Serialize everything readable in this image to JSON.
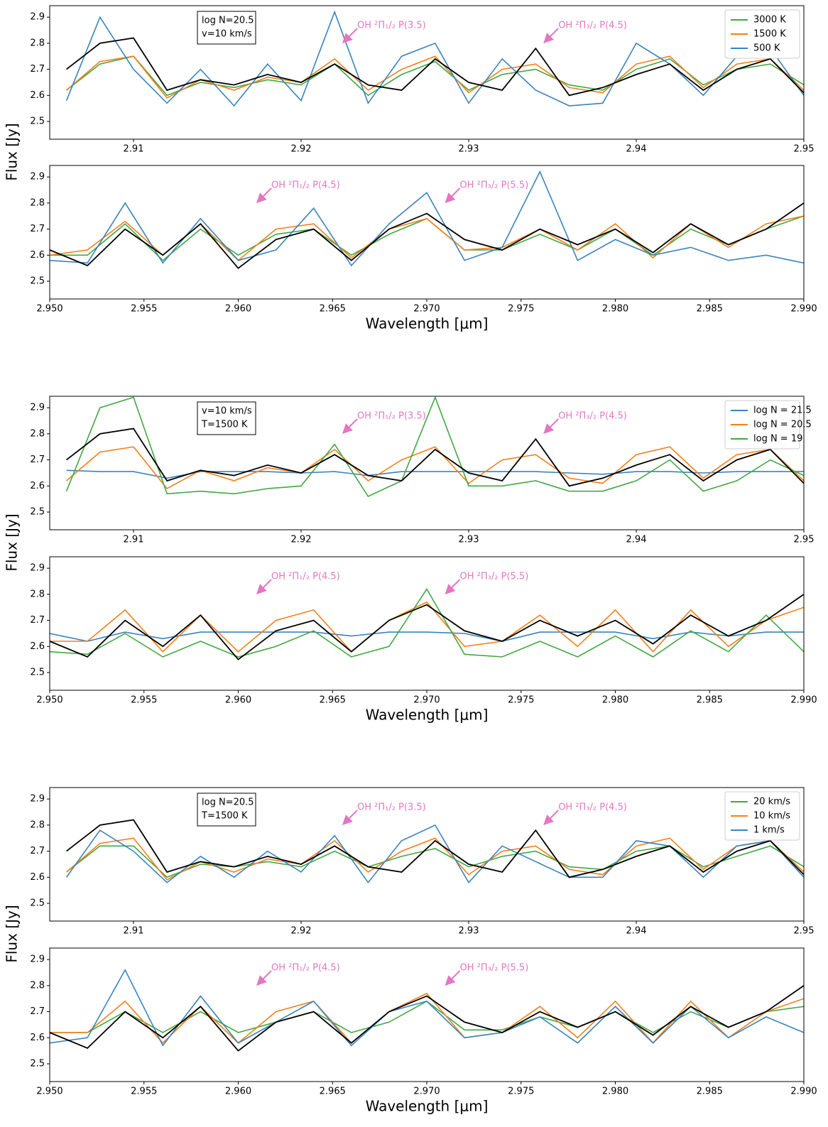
{
  "chart_data": [
    {
      "type": "line",
      "ylabel": "Flux [Jy]",
      "x": [
        2.906,
        2.908,
        2.91,
        2.912,
        2.914,
        2.916,
        2.918,
        2.92,
        2.922,
        2.924,
        2.926,
        2.928,
        2.93,
        2.932,
        2.934,
        2.936,
        2.938,
        2.94,
        2.942,
        2.944,
        2.946,
        2.948,
        2.95
      ],
      "xlim": [
        2.905,
        2.95
      ],
      "ylim": [
        2.432,
        2.944
      ],
      "xticks": [
        2.91,
        2.92,
        2.93,
        2.94,
        2.95
      ],
      "yticks": [
        2.5,
        2.6,
        2.7,
        2.8,
        2.9
      ],
      "legend": "upper right",
      "textbox": [
        "log N=20.5",
        "v=10 km/s"
      ],
      "annotations": [
        {
          "text": "OH ²Π₁/₂ P(3.5)",
          "x": 2.9225
        },
        {
          "text": "OH ²Π₃/₂ P(4.5)",
          "x": 2.9345
        }
      ],
      "series": [
        {
          "name": "3000 K",
          "color": "#43a843",
          "values": [
            2.62,
            2.72,
            2.75,
            2.6,
            2.65,
            2.63,
            2.66,
            2.64,
            2.72,
            2.6,
            2.68,
            2.73,
            2.62,
            2.68,
            2.7,
            2.64,
            2.62,
            2.7,
            2.74,
            2.64,
            2.7,
            2.72,
            2.64
          ]
        },
        {
          "name": "1500 K",
          "color": "#f47f19",
          "values": [
            2.62,
            2.73,
            2.75,
            2.59,
            2.66,
            2.62,
            2.67,
            2.65,
            2.74,
            2.62,
            2.7,
            2.75,
            2.61,
            2.7,
            2.72,
            2.63,
            2.61,
            2.72,
            2.75,
            2.63,
            2.72,
            2.74,
            2.62
          ]
        },
        {
          "name": "500 K",
          "color": "#3a84bd",
          "values": [
            2.58,
            2.9,
            2.7,
            2.57,
            2.7,
            2.56,
            2.72,
            2.58,
            2.92,
            2.57,
            2.75,
            2.8,
            2.57,
            2.74,
            2.62,
            2.56,
            2.57,
            2.8,
            2.72,
            2.6,
            2.75,
            2.78,
            2.6
          ]
        },
        {
          "color": "#000000",
          "values": [
            2.7,
            2.8,
            2.82,
            2.62,
            2.66,
            2.64,
            2.68,
            2.65,
            2.72,
            2.64,
            2.62,
            2.74,
            2.65,
            2.62,
            2.78,
            2.6,
            2.63,
            2.68,
            2.72,
            2.62,
            2.7,
            2.74,
            2.61
          ]
        }
      ]
    },
    {
      "type": "line",
      "xlabel": "Wavelength [μm]",
      "x": [
        2.95,
        2.952,
        2.954,
        2.956,
        2.958,
        2.96,
        2.962,
        2.964,
        2.966,
        2.968,
        2.97,
        2.972,
        2.974,
        2.976,
        2.978,
        2.98,
        2.982,
        2.984,
        2.986,
        2.988,
        2.99
      ],
      "xlim": [
        2.95,
        2.99
      ],
      "ylim": [
        2.432,
        2.944
      ],
      "xticks": [
        {
          "value": 2.95,
          "label": "2.950"
        },
        2.955,
        {
          "value": 2.96,
          "label": "2.960"
        },
        2.965,
        {
          "value": 2.97,
          "label": "2.970"
        },
        2.975,
        {
          "value": 2.98,
          "label": "2.980"
        },
        2.985,
        {
          "value": 2.99,
          "label": "2.990"
        }
      ],
      "yticks": [
        2.5,
        2.6,
        2.7,
        2.8,
        2.9
      ],
      "annotations": [
        {
          "text": "OH ²Π₁/₂ P(4.5)",
          "x": 2.961
        },
        {
          "text": "OH ²Π₃/₂ P(5.5)",
          "x": 2.971
        }
      ],
      "series": [
        {
          "color": "#43a843",
          "values": [
            2.6,
            2.6,
            2.72,
            2.58,
            2.7,
            2.6,
            2.68,
            2.7,
            2.6,
            2.68,
            2.74,
            2.62,
            2.62,
            2.68,
            2.62,
            2.7,
            2.6,
            2.7,
            2.64,
            2.7,
            2.75
          ]
        },
        {
          "color": "#f47f19",
          "values": [
            2.6,
            2.62,
            2.73,
            2.6,
            2.72,
            2.58,
            2.7,
            2.72,
            2.59,
            2.7,
            2.74,
            2.62,
            2.63,
            2.7,
            2.62,
            2.72,
            2.59,
            2.72,
            2.63,
            2.72,
            2.75
          ]
        },
        {
          "color": "#3a84bd",
          "values": [
            2.58,
            2.57,
            2.8,
            2.57,
            2.74,
            2.58,
            2.62,
            2.78,
            2.56,
            2.72,
            2.84,
            2.58,
            2.63,
            2.92,
            2.58,
            2.66,
            2.6,
            2.63,
            2.58,
            2.6,
            2.57
          ]
        },
        {
          "color": "#000000",
          "values": [
            2.62,
            2.56,
            2.7,
            2.6,
            2.72,
            2.55,
            2.66,
            2.7,
            2.58,
            2.7,
            2.76,
            2.66,
            2.62,
            2.7,
            2.64,
            2.7,
            2.61,
            2.72,
            2.64,
            2.7,
            2.8
          ]
        }
      ]
    },
    {
      "type": "line",
      "ylabel": "Flux [Jy]",
      "x": [
        2.906,
        2.908,
        2.91,
        2.912,
        2.914,
        2.916,
        2.918,
        2.92,
        2.922,
        2.924,
        2.926,
        2.928,
        2.93,
        2.932,
        2.934,
        2.936,
        2.938,
        2.94,
        2.942,
        2.944,
        2.946,
        2.948,
        2.95
      ],
      "xlim": [
        2.905,
        2.95
      ],
      "ylim": [
        2.432,
        2.944
      ],
      "xticks": [
        2.91,
        2.92,
        2.93,
        2.94,
        2.95
      ],
      "yticks": [
        2.5,
        2.6,
        2.7,
        2.8,
        2.9
      ],
      "legend": "upper right",
      "textbox": [
        "v=10 km/s",
        "T=1500 K"
      ],
      "annotations": [
        {
          "text": "OH ²Π₁/₂ P(3.5)",
          "x": 2.9225
        },
        {
          "text": "OH ²Π₃/₂ P(4.5)",
          "x": 2.9345
        }
      ],
      "series": [
        {
          "name": "log N = 21.5",
          "color": "#3a84bd",
          "values": [
            2.66,
            2.655,
            2.655,
            2.63,
            2.655,
            2.655,
            2.655,
            2.65,
            2.655,
            2.64,
            2.655,
            2.655,
            2.655,
            2.655,
            2.655,
            2.65,
            2.645,
            2.655,
            2.655,
            2.65,
            2.655,
            2.655,
            2.655
          ]
        },
        {
          "name": "log N = 20.5",
          "color": "#f47f19",
          "values": [
            2.62,
            2.73,
            2.75,
            2.59,
            2.66,
            2.62,
            2.67,
            2.65,
            2.74,
            2.62,
            2.7,
            2.75,
            2.61,
            2.7,
            2.72,
            2.63,
            2.61,
            2.72,
            2.75,
            2.63,
            2.72,
            2.74,
            2.62
          ]
        },
        {
          "name": "log N = 19",
          "color": "#43a843",
          "values": [
            2.58,
            2.9,
            2.94,
            2.57,
            2.58,
            2.57,
            2.59,
            2.6,
            2.76,
            2.56,
            2.62,
            2.94,
            2.6,
            2.6,
            2.62,
            2.58,
            2.58,
            2.62,
            2.7,
            2.58,
            2.62,
            2.7,
            2.64
          ]
        },
        {
          "color": "#000000",
          "values": [
            2.7,
            2.8,
            2.82,
            2.62,
            2.66,
            2.64,
            2.68,
            2.65,
            2.72,
            2.64,
            2.62,
            2.74,
            2.65,
            2.62,
            2.78,
            2.6,
            2.63,
            2.68,
            2.72,
            2.62,
            2.7,
            2.74,
            2.61
          ]
        }
      ]
    },
    {
      "type": "line",
      "xlabel": "Wavelength [μm]",
      "x": [
        2.95,
        2.952,
        2.954,
        2.956,
        2.958,
        2.96,
        2.962,
        2.964,
        2.966,
        2.968,
        2.97,
        2.972,
        2.974,
        2.976,
        2.978,
        2.98,
        2.982,
        2.984,
        2.986,
        2.988,
        2.99
      ],
      "xlim": [
        2.95,
        2.99
      ],
      "ylim": [
        2.432,
        2.944
      ],
      "xticks": [
        {
          "value": 2.95,
          "label": "2.950"
        },
        2.955,
        {
          "value": 2.96,
          "label": "2.960"
        },
        2.965,
        {
          "value": 2.97,
          "label": "2.970"
        },
        2.975,
        {
          "value": 2.98,
          "label": "2.980"
        },
        2.985,
        {
          "value": 2.99,
          "label": "2.990"
        }
      ],
      "yticks": [
        2.5,
        2.6,
        2.7,
        2.8,
        2.9
      ],
      "annotations": [
        {
          "text": "OH ²Π₁/₂ P(4.5)",
          "x": 2.961
        },
        {
          "text": "OH ²Π₃/₂ P(5.5)",
          "x": 2.971
        }
      ],
      "series": [
        {
          "color": "#3a84bd",
          "values": [
            2.65,
            2.62,
            2.655,
            2.63,
            2.655,
            2.655,
            2.655,
            2.655,
            2.64,
            2.655,
            2.655,
            2.65,
            2.62,
            2.655,
            2.655,
            2.655,
            2.63,
            2.655,
            2.64,
            2.655,
            2.655
          ]
        },
        {
          "color": "#f47f19",
          "values": [
            2.62,
            2.62,
            2.74,
            2.58,
            2.72,
            2.58,
            2.7,
            2.74,
            2.58,
            2.7,
            2.77,
            2.6,
            2.62,
            2.72,
            2.6,
            2.74,
            2.58,
            2.74,
            2.6,
            2.7,
            2.75
          ]
        },
        {
          "color": "#43a843",
          "values": [
            2.58,
            2.57,
            2.65,
            2.56,
            2.62,
            2.56,
            2.6,
            2.66,
            2.56,
            2.6,
            2.82,
            2.57,
            2.56,
            2.62,
            2.56,
            2.64,
            2.56,
            2.66,
            2.58,
            2.72,
            2.58
          ]
        },
        {
          "color": "#000000",
          "values": [
            2.62,
            2.56,
            2.7,
            2.6,
            2.72,
            2.55,
            2.66,
            2.7,
            2.58,
            2.7,
            2.76,
            2.66,
            2.62,
            2.7,
            2.64,
            2.7,
            2.61,
            2.72,
            2.64,
            2.7,
            2.8
          ]
        }
      ]
    },
    {
      "type": "line",
      "ylabel": "Flux [Jy]",
      "x": [
        2.906,
        2.908,
        2.91,
        2.912,
        2.914,
        2.916,
        2.918,
        2.92,
        2.922,
        2.924,
        2.926,
        2.928,
        2.93,
        2.932,
        2.934,
        2.936,
        2.938,
        2.94,
        2.942,
        2.944,
        2.946,
        2.948,
        2.95
      ],
      "xlim": [
        2.905,
        2.95
      ],
      "ylim": [
        2.432,
        2.944
      ],
      "xticks": [
        2.91,
        2.92,
        2.93,
        2.94,
        2.95
      ],
      "yticks": [
        2.5,
        2.6,
        2.7,
        2.8,
        2.9
      ],
      "legend": "upper right",
      "textbox": [
        "log N=20.5",
        "T=1500 K"
      ],
      "annotations": [
        {
          "text": "OH ²Π₁/₂ P(3.5)",
          "x": 2.9225
        },
        {
          "text": "OH ²Π₃/₂ P(4.5)",
          "x": 2.9345
        }
      ],
      "series": [
        {
          "name": "20 km/s",
          "color": "#43a843",
          "values": [
            2.62,
            2.72,
            2.72,
            2.6,
            2.65,
            2.64,
            2.66,
            2.64,
            2.7,
            2.64,
            2.68,
            2.71,
            2.64,
            2.68,
            2.7,
            2.64,
            2.63,
            2.7,
            2.72,
            2.64,
            2.68,
            2.72,
            2.64
          ]
        },
        {
          "name": "10 km/s",
          "color": "#f47f19",
          "values": [
            2.62,
            2.73,
            2.75,
            2.59,
            2.66,
            2.62,
            2.67,
            2.65,
            2.74,
            2.62,
            2.7,
            2.75,
            2.61,
            2.7,
            2.72,
            2.63,
            2.61,
            2.72,
            2.75,
            2.63,
            2.72,
            2.74,
            2.62
          ]
        },
        {
          "name": "1 km/s",
          "color": "#3a84bd",
          "values": [
            2.6,
            2.78,
            2.7,
            2.58,
            2.68,
            2.6,
            2.7,
            2.62,
            2.76,
            2.58,
            2.74,
            2.8,
            2.58,
            2.72,
            2.66,
            2.6,
            2.6,
            2.74,
            2.72,
            2.6,
            2.72,
            2.74,
            2.6
          ]
        },
        {
          "color": "#000000",
          "values": [
            2.7,
            2.8,
            2.82,
            2.62,
            2.66,
            2.64,
            2.68,
            2.65,
            2.72,
            2.64,
            2.62,
            2.74,
            2.65,
            2.62,
            2.78,
            2.6,
            2.63,
            2.68,
            2.72,
            2.62,
            2.7,
            2.74,
            2.61
          ]
        }
      ]
    },
    {
      "type": "line",
      "xlabel": "Wavelength [μm]",
      "x": [
        2.95,
        2.952,
        2.954,
        2.956,
        2.958,
        2.96,
        2.962,
        2.964,
        2.966,
        2.968,
        2.97,
        2.972,
        2.974,
        2.976,
        2.978,
        2.98,
        2.982,
        2.984,
        2.986,
        2.988,
        2.99
      ],
      "xlim": [
        2.95,
        2.99
      ],
      "ylim": [
        2.432,
        2.944
      ],
      "xticks": [
        {
          "value": 2.95,
          "label": "2.950"
        },
        2.955,
        {
          "value": 2.96,
          "label": "2.960"
        },
        2.965,
        {
          "value": 2.97,
          "label": "2.970"
        },
        2.975,
        {
          "value": 2.98,
          "label": "2.980"
        },
        2.985,
        {
          "value": 2.99,
          "label": "2.990"
        }
      ],
      "yticks": [
        2.5,
        2.6,
        2.7,
        2.8,
        2.9
      ],
      "annotations": [
        {
          "text": "OH ²Π₁/₂ P(4.5)",
          "x": 2.961
        },
        {
          "text": "OH ²Π₃/₂ P(5.5)",
          "x": 2.971
        }
      ],
      "series": [
        {
          "color": "#43a843",
          "values": [
            2.62,
            2.62,
            2.7,
            2.62,
            2.7,
            2.62,
            2.66,
            2.7,
            2.62,
            2.66,
            2.74,
            2.63,
            2.63,
            2.68,
            2.64,
            2.7,
            2.62,
            2.7,
            2.64,
            2.7,
            2.72
          ]
        },
        {
          "color": "#f47f19",
          "values": [
            2.62,
            2.62,
            2.74,
            2.58,
            2.72,
            2.58,
            2.7,
            2.74,
            2.58,
            2.7,
            2.77,
            2.6,
            2.62,
            2.72,
            2.6,
            2.74,
            2.58,
            2.74,
            2.6,
            2.7,
            2.75
          ]
        },
        {
          "color": "#3a84bd",
          "values": [
            2.58,
            2.6,
            2.86,
            2.57,
            2.76,
            2.58,
            2.66,
            2.74,
            2.57,
            2.7,
            2.74,
            2.6,
            2.62,
            2.68,
            2.58,
            2.72,
            2.58,
            2.72,
            2.6,
            2.68,
            2.62
          ]
        },
        {
          "color": "#000000",
          "values": [
            2.62,
            2.56,
            2.7,
            2.6,
            2.72,
            2.55,
            2.66,
            2.7,
            2.58,
            2.7,
            2.76,
            2.66,
            2.62,
            2.7,
            2.64,
            2.7,
            2.61,
            2.72,
            2.64,
            2.7,
            2.8
          ]
        }
      ]
    }
  ]
}
